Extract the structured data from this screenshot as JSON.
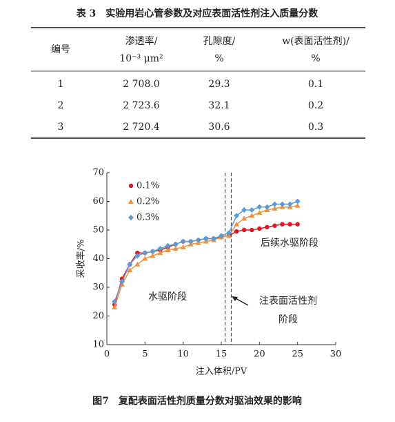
{
  "table": {
    "title": "表 3　实验用岩心管参数及对应表面活性剂注入质量分数",
    "header": [
      [
        "编号"
      ],
      [
        "渗透率/",
        "10⁻³ μm²"
      ],
      [
        "孔隙度/",
        "%"
      ],
      [
        "w(表面活性剂)/",
        "%"
      ]
    ],
    "rows": [
      [
        "1",
        "2 708.0",
        "29.3",
        "0.1"
      ],
      [
        "2",
        "2 723.6",
        "32.1",
        "0.2"
      ],
      [
        "3",
        "2 720.4",
        "30.6",
        "0.3"
      ]
    ]
  },
  "chart_data": {
    "type": "line",
    "x_label": "注入体积/PV",
    "y_label": "采收率/%",
    "x": [
      1,
      2,
      3,
      4,
      5,
      6,
      7,
      8,
      9,
      10,
      11,
      12,
      13,
      14,
      15,
      16,
      17,
      18,
      19,
      20,
      21,
      22,
      23,
      24,
      25
    ],
    "series": [
      {
        "name": "0.1%",
        "color": "#e0161e",
        "marker": "circle",
        "values": [
          24,
          33,
          38,
          42,
          42,
          42.5,
          43,
          44,
          45,
          46,
          46,
          46.5,
          47,
          47,
          47.5,
          48,
          49.5,
          50,
          50,
          50.5,
          51,
          51.5,
          52,
          52,
          52
        ]
      },
      {
        "name": "0.2%",
        "color": "#f0923c",
        "marker": "triangle",
        "values": [
          23,
          31,
          36,
          38,
          40,
          41,
          42,
          43,
          43.5,
          44,
          45,
          45.5,
          46,
          46.5,
          47.5,
          48,
          52,
          54,
          55,
          56,
          57,
          57.5,
          58,
          58,
          58.5
        ]
      },
      {
        "name": "0.3%",
        "color": "#5b9bd5",
        "marker": "diamond",
        "values": [
          25,
          32,
          38,
          41,
          42,
          42.5,
          43.5,
          44.5,
          45,
          46,
          46,
          46.5,
          47,
          47,
          48,
          49,
          55,
          57,
          57,
          58,
          58,
          59,
          59,
          59,
          60
        ]
      }
    ],
    "xlim": [
      0,
      30
    ],
    "xticks": [
      0,
      5,
      10,
      15,
      20,
      25,
      30
    ],
    "ylim": [
      10,
      70
    ],
    "yticks": [
      10,
      20,
      30,
      40,
      50,
      60,
      70
    ],
    "vlines": [
      15.5,
      16.3
    ],
    "annotations": [
      "后续水驱阶段",
      "水驱阶段",
      "注表面活性剂",
      "阶段"
    ],
    "legend": "upper left"
  },
  "caption": "图7　复配表面活性剂质量分数对驱油效果的影响"
}
